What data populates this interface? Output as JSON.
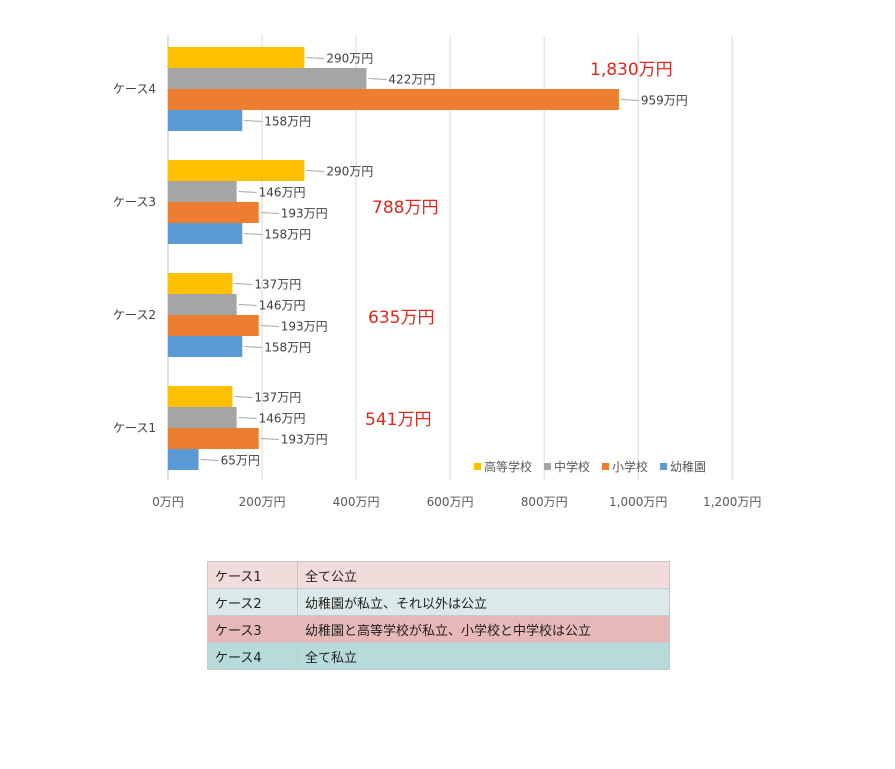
{
  "chart_data": {
    "type": "bar",
    "orientation": "horizontal",
    "categories": [
      "ケース1",
      "ケース2",
      "ケース3",
      "ケース4"
    ],
    "series": [
      {
        "name": "高等学校",
        "color": "#ffc000",
        "values": [
          137,
          137,
          290,
          290
        ],
        "labels": [
          "137万円",
          "137万円",
          "290万円",
          "290万円"
        ]
      },
      {
        "name": "中学校",
        "color": "#a5a5a5",
        "values": [
          146,
          146,
          146,
          422
        ],
        "labels": [
          "146万円",
          "146万円",
          "146万円",
          "422万円"
        ]
      },
      {
        "name": "小学校",
        "color": "#ed7d31",
        "values": [
          193,
          193,
          193,
          959
        ],
        "labels": [
          "193万円",
          "193万円",
          "193万円",
          "959万円"
        ]
      },
      {
        "name": "幼稚園",
        "color": "#5b9bd5",
        "values": [
          65,
          158,
          158,
          158
        ],
        "labels": [
          "65万円",
          "158万円",
          "158万円",
          "158万円"
        ]
      }
    ],
    "totals": [
      "541万円",
      "635万円",
      "788万円",
      "1,830万円"
    ],
    "xlim": [
      0,
      1200
    ],
    "x_ticks": [
      0,
      200,
      400,
      600,
      800,
      1000,
      1200
    ],
    "x_tick_labels": [
      "0万円",
      "200万円",
      "400万円",
      "600万円",
      "800万円",
      "1,000万円",
      "1,200万円"
    ],
    "grid": true,
    "legend_position": "bottom-right"
  },
  "cases_table": [
    {
      "key": "ケース1",
      "desc": "全て公立",
      "color": "#f2dcdb"
    },
    {
      "key": "ケース2",
      "desc": "幼稚園が私立、それ以外は公立",
      "color": "#dbe9e8"
    },
    {
      "key": "ケース3",
      "desc": "幼稚園と高等学校が私立、小学校と中学校は公立",
      "color": "#e6b9b8"
    },
    {
      "key": "ケース4",
      "desc": "全て私立",
      "color": "#b7dada"
    }
  ]
}
